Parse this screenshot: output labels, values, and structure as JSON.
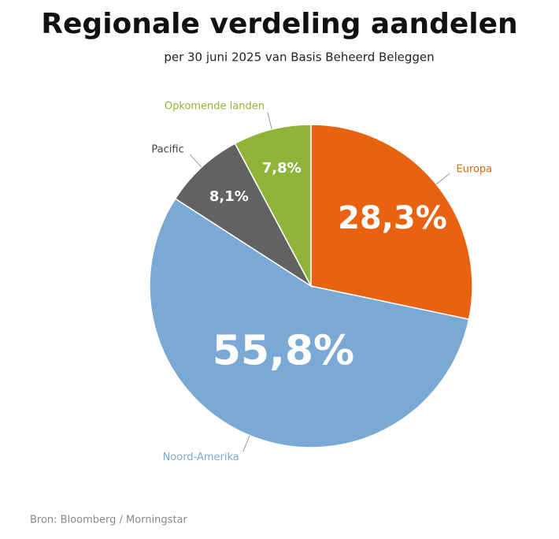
{
  "chart_data": {
    "type": "pie",
    "title": "Regionale verdeling aandelen",
    "subtitle": "per 30 juni 2025 van Basis Beheerd Beleggen",
    "source": "Bron: Bloomberg / Morningstar",
    "categories": [
      "Europa",
      "Noord-Amerika",
      "Pacific",
      "Opkomende landen"
    ],
    "values": [
      28.3,
      55.8,
      8.1,
      7.8
    ],
    "value_labels": [
      "28,3%",
      "55,8%",
      "8,1%",
      "7,8%"
    ],
    "colors": [
      "#e8620f",
      "#7aa9d6",
      "#626262",
      "#8fb43a"
    ]
  }
}
